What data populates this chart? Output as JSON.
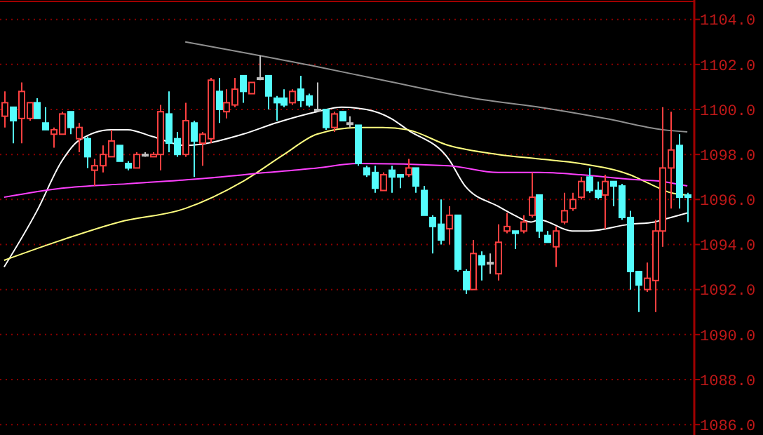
{
  "chart_data": {
    "type": "candlestick",
    "categories": [
      null,
      null,
      null,
      null,
      null,
      null,
      null,
      null,
      null,
      null,
      null,
      null,
      null,
      null,
      null,
      null,
      null,
      null,
      null,
      null,
      null,
      null,
      null,
      null,
      null,
      null,
      null,
      null,
      null,
      null,
      null,
      null,
      null,
      null,
      null,
      null,
      null,
      null,
      null,
      null,
      null,
      null,
      null,
      null,
      null,
      null,
      null,
      null,
      null,
      null,
      null,
      null,
      null,
      null,
      null,
      null,
      null,
      null,
      null,
      null,
      null,
      null,
      null,
      null,
      null,
      null,
      null,
      null,
      null,
      null,
      null,
      null,
      null,
      null,
      null,
      null,
      null,
      null,
      null,
      null,
      null,
      null,
      null,
      null
    ],
    "ohlc": [
      [
        1099.7,
        1100.8,
        1099.2,
        1100.3
      ],
      [
        1100.1,
        1100.1,
        1098.5,
        1099.5
      ],
      [
        1099.6,
        1101.2,
        1098.5,
        1100.8
      ],
      [
        1099.6,
        1100.3,
        1099.5,
        1100.3
      ],
      [
        1100.3,
        1100.5,
        1099.6,
        1099.6
      ],
      [
        1099.4,
        1100.1,
        1099.1,
        1099.1
      ],
      [
        1098.9,
        1099.2,
        1098.3,
        1099.1
      ],
      [
        1098.9,
        1099.9,
        1098.9,
        1099.8
      ],
      [
        1099.9,
        1099.9,
        1098.9,
        1099.2
      ],
      [
        1098.7,
        1099.4,
        1098.1,
        1099.2
      ],
      [
        1098.7,
        1098.8,
        1097.4,
        1097.9
      ],
      [
        1097.3,
        1097.8,
        1096.6,
        1097.5
      ],
      [
        1097.5,
        1098.4,
        1097.2,
        1098.0
      ],
      [
        1097.9,
        1099.1,
        1097.9,
        1098.6
      ],
      [
        1098.4,
        1098.4,
        1097.7,
        1097.7
      ],
      [
        1097.6,
        1097.7,
        1097.3,
        1097.4
      ],
      [
        1097.4,
        1098.1,
        1097.4,
        1098.0
      ],
      [
        1098.0,
        1098.1,
        1097.9,
        1098.0
      ],
      [
        1097.9,
        1098.1,
        1097.9,
        1098.0
      ],
      [
        1098.0,
        1100.2,
        1097.3,
        1099.9
      ],
      [
        1099.8,
        1100.8,
        1098.1,
        1098.5
      ],
      [
        1098.7,
        1099.0,
        1097.9,
        1098.0
      ],
      [
        1098.0,
        1100.3,
        1097.9,
        1099.5
      ],
      [
        1099.4,
        1099.5,
        1097.0,
        1098.6
      ],
      [
        1098.5,
        1099.0,
        1097.5,
        1098.9
      ],
      [
        1098.7,
        1101.4,
        1098.5,
        1101.3
      ],
      [
        1100.8,
        1101.4,
        1099.4,
        1100.0
      ],
      [
        1099.9,
        1100.9,
        1099.6,
        1100.3
      ],
      [
        1100.2,
        1101.4,
        1100.1,
        1100.9
      ],
      [
        1101.5,
        1101.5,
        1100.3,
        1100.8
      ],
      [
        1100.7,
        1101.2,
        1100.7,
        1101.2
      ],
      [
        1101.4,
        1102.4,
        1101.3,
        1101.4
      ],
      [
        1101.5,
        1101.5,
        1100.0,
        1100.6
      ],
      [
        1100.5,
        1100.6,
        1099.5,
        1100.3
      ],
      [
        1100.5,
        1100.9,
        1100.1,
        1100.2
      ],
      [
        1100.3,
        1100.9,
        1100.2,
        1100.8
      ],
      [
        1100.9,
        1101.5,
        1100.1,
        1100.4
      ],
      [
        1100.6,
        1100.7,
        1100.1,
        1100.2
      ],
      [
        1100.0,
        1101.2,
        1099.9,
        1100.0
      ],
      [
        1100.0,
        1100.0,
        1099.1,
        1099.2
      ],
      [
        1099.2,
        1099.9,
        1099.0,
        1099.8
      ],
      [
        1099.9,
        1099.9,
        1099.5,
        1099.5
      ],
      [
        1099.4,
        1099.7,
        1099.2,
        1099.4
      ],
      [
        1099.3,
        1099.3,
        1097.5,
        1097.6
      ],
      [
        1097.4,
        1097.5,
        1097.0,
        1097.1
      ],
      [
        1097.2,
        1097.5,
        1096.3,
        1096.5
      ],
      [
        1096.4,
        1097.2,
        1096.4,
        1097.1
      ],
      [
        1097.3,
        1097.5,
        1096.3,
        1097.0
      ],
      [
        1097.1,
        1097.1,
        1096.5,
        1097.0
      ],
      [
        1097.1,
        1097.8,
        1097.0,
        1097.4
      ],
      [
        1097.4,
        1097.4,
        1096.3,
        1096.6
      ],
      [
        1096.4,
        1096.6,
        1095.3,
        1095.3
      ],
      [
        1095.2,
        1095.3,
        1093.6,
        1094.8
      ],
      [
        1094.9,
        1096.0,
        1094.0,
        1094.2
      ],
      [
        1094.7,
        1095.7,
        1094.0,
        1095.3
      ],
      [
        1095.3,
        1095.3,
        1092.8,
        1092.9
      ],
      [
        1092.8,
        1092.9,
        1091.8,
        1092.0
      ],
      [
        1092.0,
        1094.2,
        1092.0,
        1093.6
      ],
      [
        1093.5,
        1093.7,
        1092.4,
        1093.1
      ],
      [
        1093.2,
        1093.6,
        1092.7,
        1093.2
      ],
      [
        1092.7,
        1094.9,
        1092.4,
        1094.1
      ],
      [
        1094.6,
        1095.4,
        1094.5,
        1094.8
      ],
      [
        1094.6,
        1094.6,
        1093.8,
        1094.5
      ],
      [
        1094.6,
        1095.3,
        1094.5,
        1095.0
      ],
      [
        1095.3,
        1097.2,
        1095.2,
        1096.1
      ],
      [
        1096.2,
        1096.2,
        1094.3,
        1094.6
      ],
      [
        1094.4,
        1094.6,
        1094.1,
        1094.1
      ],
      [
        1093.9,
        1094.8,
        1093.0,
        1094.6
      ],
      [
        1095.0,
        1096.3,
        1094.9,
        1095.5
      ],
      [
        1095.6,
        1096.3,
        1095.5,
        1096.0
      ],
      [
        1096.1,
        1097.0,
        1096.0,
        1096.8
      ],
      [
        1097.0,
        1097.4,
        1096.3,
        1096.4
      ],
      [
        1096.4,
        1096.8,
        1096.0,
        1096.1
      ],
      [
        1096.2,
        1097.1,
        1094.7,
        1096.8
      ],
      [
        1096.8,
        1096.8,
        1095.7,
        1096.6
      ],
      [
        1096.6,
        1096.7,
        1095.1,
        1095.2
      ],
      [
        1095.2,
        1095.5,
        1092.0,
        1092.8
      ],
      [
        1092.8,
        1092.8,
        1091.0,
        1092.2
      ],
      [
        1092.0,
        1093.2,
        1091.9,
        1092.5
      ],
      [
        1092.4,
        1095.1,
        1091.0,
        1094.6
      ],
      [
        1094.6,
        1100.1,
        1093.9,
        1097.4
      ],
      [
        1097.4,
        1099.9,
        1095.6,
        1098.2
      ],
      [
        1098.4,
        1098.9,
        1095.6,
        1096.1
      ],
      [
        1096.2,
        1096.3,
        1095.0,
        1096.1
      ]
    ],
    "colors": [
      "#ff4040",
      "#54fcfc",
      "#ff4040",
      "#ff4040",
      "#54fcfc",
      "#54fcfc",
      "#ff4040",
      "#ff4040",
      "#54fcfc",
      "#ff4040",
      "#54fcfc",
      "#ff4040",
      "#ff4040",
      "#ff4040",
      "#54fcfc",
      "#54fcfc",
      "#ff4040",
      "#c0c0c0",
      "#ff4040",
      "#ff4040",
      "#54fcfc",
      "#54fcfc",
      "#ff4040",
      "#54fcfc",
      "#ff4040",
      "#ff4040",
      "#54fcfc",
      "#ff4040",
      "#ff4040",
      "#54fcfc",
      "#ff4040",
      "#c0c0c0",
      "#54fcfc",
      "#54fcfc",
      "#54fcfc",
      "#ff4040",
      "#54fcfc",
      "#54fcfc",
      "#c0c0c0",
      "#54fcfc",
      "#ff4040",
      "#54fcfc",
      "#c0c0c0",
      "#54fcfc",
      "#54fcfc",
      "#54fcfc",
      "#ff4040",
      "#54fcfc",
      "#54fcfc",
      "#ff4040",
      "#54fcfc",
      "#54fcfc",
      "#54fcfc",
      "#54fcfc",
      "#ff4040",
      "#54fcfc",
      "#54fcfc",
      "#ff4040",
      "#54fcfc",
      "#c0c0c0",
      "#ff4040",
      "#ff4040",
      "#54fcfc",
      "#ff4040",
      "#ff4040",
      "#54fcfc",
      "#54fcfc",
      "#ff4040",
      "#ff4040",
      "#ff4040",
      "#ff4040",
      "#54fcfc",
      "#54fcfc",
      "#ff4040",
      "#54fcfc",
      "#54fcfc",
      "#54fcfc",
      "#54fcfc",
      "#ff4040",
      "#ff4040",
      "#ff4040",
      "#ff4040",
      "#54fcfc",
      "#54fcfc"
    ],
    "series": [
      {
        "type": "line",
        "color": "#ffffff",
        "values": [
          1093.0,
          null,
          null,
          null,
          1095.5,
          null,
          null,
          1097.7,
          null,
          1098.6,
          null,
          null,
          null,
          1099.1,
          null,
          1099.1,
          null,
          null,
          1098.8,
          null,
          null,
          null,
          1098.4,
          null,
          null,
          null,
          null,
          null,
          null,
          1098.9,
          null,
          null,
          null,
          1099.4,
          null,
          null,
          null,
          null,
          1099.9,
          null,
          null,
          1100.1,
          null,
          null,
          1100.0,
          null,
          null,
          1099.6,
          null,
          1099.1,
          null,
          null,
          null,
          null,
          1097.8,
          null,
          1096.6,
          null,
          null,
          null,
          1095.7,
          null,
          1095.3,
          null,
          1095.0,
          1095.1,
          null,
          null,
          null,
          1094.6,
          null,
          1094.6,
          null,
          null,
          null,
          null,
          1094.9,
          null,
          null,
          1095.0,
          1095.1,
          null,
          1095.3,
          1095.4
        ]
      },
      {
        "type": "line",
        "color": "#ffff80",
        "values": [
          1093.3,
          null,
          null,
          null,
          null,
          null,
          null,
          1094.2,
          null,
          null,
          null,
          null,
          null,
          null,
          1095.0,
          null,
          null,
          null,
          null,
          null,
          null,
          null,
          1095.6,
          null,
          null,
          null,
          null,
          null,
          null,
          1096.8,
          null,
          null,
          null,
          null,
          1098.0,
          null,
          null,
          null,
          1098.9,
          null,
          null,
          null,
          null,
          1099.2,
          null,
          null,
          1099.2,
          null,
          null,
          1099.1,
          null,
          null,
          null,
          null,
          1098.4,
          null,
          null,
          null,
          null,
          null,
          1098.0,
          null,
          null,
          null,
          null,
          1097.8,
          null,
          null,
          null,
          null,
          1097.6,
          null,
          null,
          null,
          null,
          null,
          1097.1,
          null,
          null,
          1096.6,
          null,
          1096.3,
          null,
          1096.2
        ]
      },
      {
        "type": "line",
        "color": "#ff40ff",
        "values": [
          1096.1,
          null,
          null,
          null,
          null,
          null,
          null,
          1096.5,
          null,
          null,
          null,
          null,
          null,
          null,
          null,
          1096.7,
          null,
          null,
          null,
          null,
          null,
          null,
          null,
          1096.9,
          null,
          null,
          null,
          null,
          null,
          null,
          null,
          null,
          1097.2,
          null,
          null,
          null,
          null,
          null,
          1097.4,
          null,
          null,
          null,
          null,
          1097.6,
          null,
          null,
          null,
          null,
          null,
          null,
          null,
          null,
          null,
          null,
          1097.5,
          null,
          null,
          null,
          null,
          null,
          1097.2,
          null,
          null,
          null,
          null,
          1097.2,
          null,
          null,
          null,
          null,
          1097.1,
          null,
          null,
          null,
          null,
          null,
          1096.9,
          null,
          null,
          null,
          1096.8,
          null,
          null,
          1096.6
        ]
      },
      {
        "type": "line",
        "color": "#909090",
        "values": [
          null,
          null,
          null,
          null,
          null,
          null,
          null,
          null,
          null,
          null,
          null,
          null,
          null,
          null,
          null,
          null,
          null,
          null,
          null,
          null,
          null,
          null,
          1103.0,
          null,
          null,
          null,
          null,
          null,
          null,
          null,
          null,
          null,
          null,
          null,
          null,
          null,
          null,
          null,
          1101.9,
          null,
          null,
          null,
          null,
          null,
          null,
          null,
          1101.3,
          null,
          null,
          null,
          null,
          null,
          null,
          null,
          null,
          null,
          null,
          1100.5,
          null,
          null,
          null,
          null,
          null,
          null,
          null,
          1100.1,
          null,
          null,
          null,
          null,
          null,
          null,
          null,
          1099.6,
          null,
          null,
          null,
          null,
          null,
          null,
          1099.1,
          null,
          null,
          1099.0
        ]
      }
    ],
    "ylim": [
      1085.6,
      1104.8
    ],
    "yticks": [
      {
        "value": 1086,
        "label": "1086.0"
      },
      {
        "value": 1088,
        "label": "1088.0"
      },
      {
        "value": 1090,
        "label": "1090.0"
      },
      {
        "value": 1092,
        "label": "1092.0"
      },
      {
        "value": 1094,
        "label": "1094.0"
      },
      {
        "value": 1096,
        "label": "1096.0"
      },
      {
        "value": 1098,
        "label": "1098.0"
      },
      {
        "value": 1100,
        "label": "1100.0"
      },
      {
        "value": 1102,
        "label": "1102.0"
      },
      {
        "value": 1104,
        "label": "1104.0"
      }
    ],
    "grid": "y",
    "tick_labels": "y"
  }
}
